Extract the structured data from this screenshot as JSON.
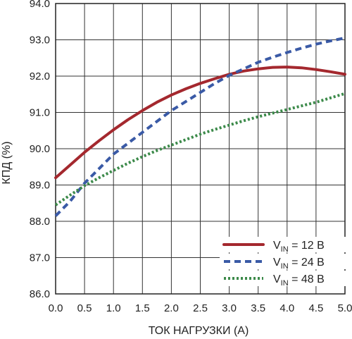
{
  "chart_data": {
    "type": "line",
    "xlabel": "ТОК НАГРУЗКИ (А)",
    "ylabel": "КПД (%)",
    "xlim": [
      0,
      5
    ],
    "ylim": [
      86,
      94
    ],
    "x_ticks": [
      "0.0",
      "0.5",
      "1.0",
      "1.5",
      "2.0",
      "2.5",
      "3.0",
      "3.5",
      "4.0",
      "4.5",
      "5.0"
    ],
    "y_ticks": [
      "86.0",
      "87.0",
      "88.0",
      "89.0",
      "90.0",
      "91.0",
      "92.0",
      "93.0",
      "94.0"
    ],
    "grid": true,
    "legend_position": "bottom-right",
    "series": [
      {
        "legend_prefix": "V",
        "legend_sub": "IN",
        "legend_suffix": " = 12 В",
        "color": "#a4282e",
        "style": "solid",
        "x": [
          0.0,
          0.25,
          0.5,
          0.75,
          1.0,
          1.25,
          1.5,
          1.75,
          2.0,
          2.25,
          2.5,
          2.75,
          3.0,
          3.25,
          3.5,
          3.75,
          4.0,
          4.25,
          4.5,
          4.75,
          5.0
        ],
        "y": [
          89.2,
          89.55,
          89.9,
          90.22,
          90.52,
          90.8,
          91.05,
          91.28,
          91.48,
          91.65,
          91.8,
          91.93,
          92.05,
          92.14,
          92.2,
          92.24,
          92.25,
          92.23,
          92.18,
          92.12,
          92.05
        ]
      },
      {
        "legend_prefix": "V",
        "legend_sub": "IN",
        "legend_suffix": " = 24 В",
        "color": "#3a5aa6",
        "style": "dashed",
        "x": [
          0.0,
          0.25,
          0.5,
          0.75,
          1.0,
          1.25,
          1.5,
          1.75,
          2.0,
          2.25,
          2.5,
          2.75,
          3.0,
          3.25,
          3.5,
          3.75,
          4.0,
          4.25,
          4.5,
          4.75,
          5.0
        ],
        "y": [
          88.15,
          88.55,
          89.05,
          89.45,
          89.85,
          90.15,
          90.45,
          90.75,
          91.05,
          91.3,
          91.55,
          91.8,
          92.02,
          92.2,
          92.38,
          92.52,
          92.65,
          92.77,
          92.88,
          92.97,
          93.05
        ]
      },
      {
        "legend_prefix": "V",
        "legend_sub": "IN",
        "legend_suffix": " = 48 В",
        "color": "#3c8a4a",
        "style": "dotted",
        "x": [
          0.0,
          0.25,
          0.5,
          0.75,
          1.0,
          1.25,
          1.5,
          1.75,
          2.0,
          2.25,
          2.5,
          2.75,
          3.0,
          3.25,
          3.5,
          3.75,
          4.0,
          4.25,
          4.5,
          4.75,
          5.0
        ],
        "y": [
          88.45,
          88.72,
          88.98,
          89.2,
          89.4,
          89.6,
          89.78,
          89.95,
          90.1,
          90.25,
          90.4,
          90.53,
          90.65,
          90.77,
          90.88,
          90.98,
          91.08,
          91.18,
          91.28,
          91.4,
          91.52
        ]
      }
    ]
  }
}
